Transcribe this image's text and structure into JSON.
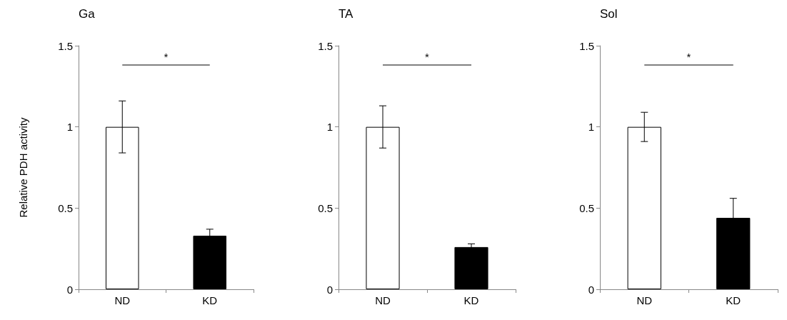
{
  "chart_data": [
    {
      "type": "bar",
      "title": "Ga",
      "ylabel": "Relative PDH activity",
      "categories": [
        "ND",
        "KD"
      ],
      "values": [
        1,
        0.33
      ],
      "errors": [
        0.16,
        0.04
      ],
      "colors": [
        "#ffffff",
        "#000000"
      ],
      "ylim": [
        0,
        1.5
      ],
      "yticks": [
        0,
        0.5,
        1,
        1.5
      ],
      "annotations": [
        "*"
      ]
    },
    {
      "type": "bar",
      "title": "TA",
      "categories": [
        "ND",
        "KD"
      ],
      "values": [
        1,
        0.26
      ],
      "errors": [
        0.13,
        0.02
      ],
      "colors": [
        "#ffffff",
        "#000000"
      ],
      "ylim": [
        0,
        1.5
      ],
      "yticks": [
        0,
        0.5,
        1,
        1.5
      ],
      "annotations": [
        "*"
      ]
    },
    {
      "type": "bar",
      "title": "Sol",
      "categories": [
        "ND",
        "KD"
      ],
      "values": [
        1,
        0.44
      ],
      "errors": [
        0.09,
        0.12
      ],
      "colors": [
        "#ffffff",
        "#000000"
      ],
      "ylim": [
        0,
        1.5
      ],
      "yticks": [
        0,
        0.5,
        1,
        1.5
      ],
      "annotations": [
        "*"
      ]
    }
  ]
}
